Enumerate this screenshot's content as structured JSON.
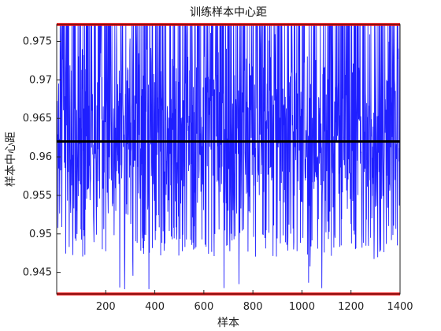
{
  "chart_data": {
    "type": "line",
    "title": "训练样本中心距",
    "xlabel": "样本",
    "ylabel": "样本中心距",
    "xlim": [
      0,
      1400
    ],
    "ylim": [
      0.9422,
      0.9772
    ],
    "xticks": [
      200,
      400,
      600,
      800,
      1000,
      1200,
      1400
    ],
    "yticks": [
      0.945,
      0.95,
      0.955,
      0.96,
      0.965,
      0.97,
      0.975
    ],
    "ytick_labels": [
      "0.945",
      "0.95",
      "0.955",
      "0.96",
      "0.965",
      "0.97",
      "0.975"
    ],
    "grid": false,
    "legend": "none",
    "series": [
      {
        "kind": "noisy-line",
        "x_start": 1,
        "x_end": 1400,
        "center": 0.962,
        "upper_clip": 0.9772,
        "lower_clip": 0.9422,
        "typical_low": 0.947,
        "typical_high": 0.9772,
        "color": "#1f1fff"
      },
      {
        "kind": "hline",
        "y": 0.962,
        "color": "#000000"
      },
      {
        "kind": "hline",
        "y": 0.9772,
        "color": "#ff0000"
      },
      {
        "kind": "hline",
        "y": 0.9422,
        "color": "#ff0000"
      }
    ]
  }
}
